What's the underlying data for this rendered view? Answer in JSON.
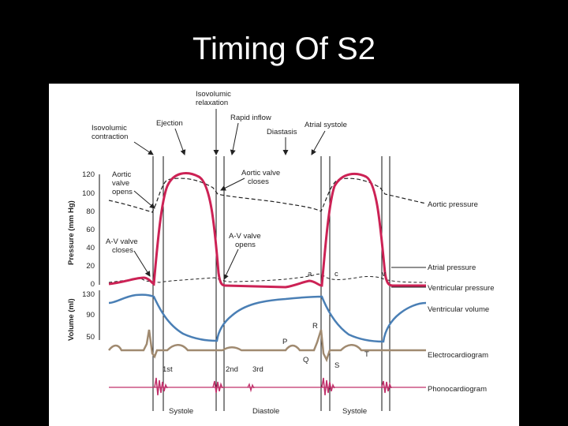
{
  "title": "Timing Of S2",
  "figure": {
    "phase_labels": {
      "isovolumic_relaxation_1": "Isovolumic",
      "isovolumic_relaxation_2": "relaxation",
      "isovolumic_contraction_1": "Isovolumic",
      "isovolumic_contraction_2": "contraction",
      "ejection": "Ejection",
      "rapid_inflow": "Rapid inflow",
      "diastasis": "Diastasis",
      "atrial_systole": "Atrial systole"
    },
    "event_labels": {
      "aortic_valve_opens_1": "Aortic",
      "aortic_valve_opens_2": "valve",
      "aortic_valve_opens_3": "opens",
      "aortic_valve_closes_1": "Aortic valve",
      "aortic_valve_closes_2": "closes",
      "av_valve_closes_1": "A-V valve",
      "av_valve_closes_2": "closes",
      "av_valve_opens_1": "A-V valve",
      "av_valve_opens_2": "opens"
    },
    "wave_labels": {
      "a": "a",
      "c": "c",
      "v": "v",
      "P": "P",
      "Q": "Q",
      "R": "R",
      "S": "S",
      "T": "T"
    },
    "curve_labels": {
      "aortic_pressure": "Aortic pressure",
      "atrial_pressure": "Atrial pressure",
      "ventricular_pressure": "Ventricular pressure",
      "ventricular_volume": "Ventricular volume",
      "electrocardiogram": "Electrocardiogram",
      "phonocardiogram": "Phonocardiogram"
    },
    "sound_labels": {
      "first": "1st",
      "second": "2nd",
      "third": "3rd"
    },
    "period_labels": {
      "systole_1": "Systole",
      "diastole": "Diastole",
      "systole_2": "Systole"
    },
    "pressure_axis": {
      "title": "Pressure (mm Hg)",
      "ticks": [
        "120",
        "100",
        "80",
        "60",
        "40",
        "20",
        "0"
      ]
    },
    "volume_axis": {
      "title": "Volume (ml)",
      "ticks": [
        "130",
        "90",
        "50"
      ]
    },
    "colors": {
      "ventricular_pressure": "#cc2255",
      "ventricular_volume": "#4a7fb5",
      "electrocardiogram": "#a08a70",
      "phonocardiogram": "#c0306a",
      "aortic_pressure": "#222222"
    }
  }
}
